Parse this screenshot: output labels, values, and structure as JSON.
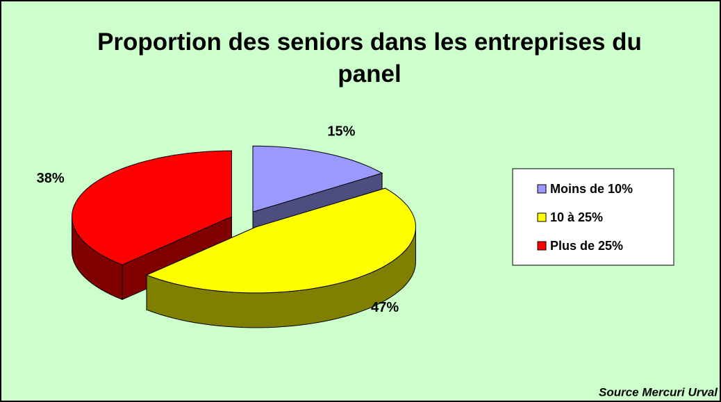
{
  "chart_data": {
    "type": "pie",
    "title": "Proportion des seniors dans les entreprises du panel",
    "categories": [
      "Moins de 10%",
      "10 à 25%",
      "Plus de 25%"
    ],
    "values": [
      15,
      47,
      38
    ],
    "value_labels": [
      "15%",
      "47%",
      "38%"
    ],
    "colors": [
      "#9999ff",
      "#ffff00",
      "#ff0000"
    ],
    "legend": "right",
    "source": "Source Mercuri Urval"
  }
}
